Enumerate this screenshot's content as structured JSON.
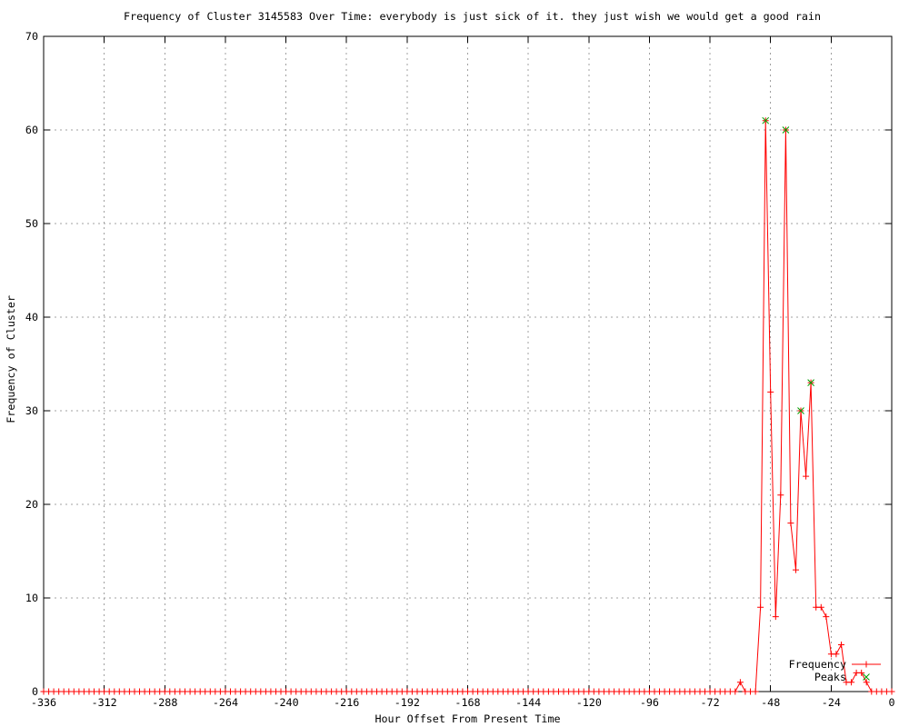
{
  "window": {
    "title": "Frequency of Cluster 3145583 Over Time"
  },
  "chart_data": {
    "type": "line",
    "title": "Frequency of Cluster 3145583 Over Time: everybody is just sick of it. they just wish we would get a good rain",
    "xlabel": "Hour Offset From Present Time",
    "ylabel": "Frequency of Cluster",
    "xlim": [
      -336,
      0
    ],
    "ylim": [
      0,
      70
    ],
    "x_tick_step": 24,
    "y_tick_step": 10,
    "grid": true,
    "legend_position": "bottom-right-inside",
    "x_start": -336,
    "x_step": 2,
    "series": [
      {
        "name": "Frequency",
        "color": "#ff0000",
        "style": "linespoints",
        "marker": "plus",
        "values": [
          0,
          0,
          0,
          0,
          0,
          0,
          0,
          0,
          0,
          0,
          0,
          0,
          0,
          0,
          0,
          0,
          0,
          0,
          0,
          0,
          0,
          0,
          0,
          0,
          0,
          0,
          0,
          0,
          0,
          0,
          0,
          0,
          0,
          0,
          0,
          0,
          0,
          0,
          0,
          0,
          0,
          0,
          0,
          0,
          0,
          0,
          0,
          0,
          0,
          0,
          0,
          0,
          0,
          0,
          0,
          0,
          0,
          0,
          0,
          0,
          0,
          0,
          0,
          0,
          0,
          0,
          0,
          0,
          0,
          0,
          0,
          0,
          0,
          0,
          0,
          0,
          0,
          0,
          0,
          0,
          0,
          0,
          0,
          0,
          0,
          0,
          0,
          0,
          0,
          0,
          0,
          0,
          0,
          0,
          0,
          0,
          0,
          0,
          0,
          0,
          0,
          0,
          0,
          0,
          0,
          0,
          0,
          0,
          0,
          0,
          0,
          0,
          0,
          0,
          0,
          0,
          0,
          0,
          0,
          0,
          0,
          0,
          0,
          0,
          0,
          0,
          0,
          0,
          0,
          0,
          0,
          0,
          0,
          0,
          0,
          0,
          0,
          0,
          1,
          0,
          0,
          0,
          9,
          61,
          32,
          8,
          21,
          60,
          18,
          13,
          30,
          23,
          33,
          9,
          9,
          8,
          4,
          4,
          5,
          1,
          1,
          2,
          2,
          1,
          0,
          0,
          0,
          0,
          0
        ]
      },
      {
        "name": "Peaks",
        "color": "#00a000",
        "style": "points",
        "marker": "cross",
        "points": [
          [
            -50,
            61
          ],
          [
            -42,
            60
          ],
          [
            -36,
            30
          ],
          [
            -32,
            33
          ]
        ]
      }
    ]
  },
  "colors": {
    "background": "#ffffff",
    "border": "#000000",
    "grid": "#a0a0a0",
    "frequency_series": "#ff0000",
    "peaks_series": "#00a000",
    "text": "#000000"
  }
}
